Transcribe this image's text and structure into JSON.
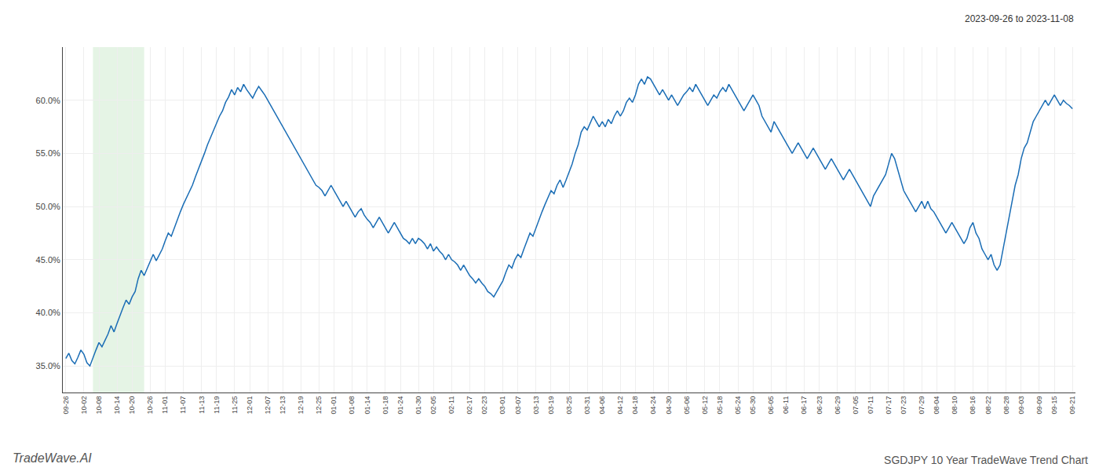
{
  "chart_data": {
    "type": "line",
    "title": "SGDJPY 10 Year TradeWave Trend Chart",
    "subtitle": "2023-09-26 to 2023-11-08",
    "annotations": [
      {
        "text": "TradeWave.AI"
      }
    ],
    "color": "#1a6db5",
    "grid": true,
    "shade": {
      "from": 9,
      "to": 26,
      "color": "#d4ecd4"
    },
    "xlim": [
      -1,
      335
    ],
    "ylim": [
      32.5,
      65.0
    ],
    "yticks": [
      {
        "value": 35.0,
        "label": "35.0%"
      },
      {
        "value": 40.0,
        "label": "40.0%"
      },
      {
        "value": 45.0,
        "label": "45.0%"
      },
      {
        "value": 50.0,
        "label": "50.0%"
      },
      {
        "value": 55.0,
        "label": "55.0%"
      },
      {
        "value": 60.0,
        "label": "60.0%"
      }
    ],
    "categories": [
      "09-26",
      null,
      null,
      null,
      null,
      null,
      "10-02",
      null,
      null,
      null,
      null,
      "10-08",
      null,
      null,
      null,
      null,
      null,
      "10-14",
      null,
      null,
      null,
      null,
      "10-20",
      null,
      null,
      null,
      null,
      null,
      "10-26",
      null,
      null,
      null,
      null,
      "11-01",
      null,
      null,
      null,
      null,
      null,
      "11-07",
      null,
      null,
      null,
      null,
      null,
      "11-13",
      null,
      null,
      null,
      null,
      "11-19",
      null,
      null,
      null,
      null,
      null,
      "11-25",
      null,
      null,
      null,
      null,
      "12-01",
      null,
      null,
      null,
      null,
      null,
      "12-07",
      null,
      null,
      null,
      null,
      "12-13",
      null,
      null,
      null,
      null,
      null,
      "12-19",
      null,
      null,
      null,
      null,
      null,
      "12-25",
      null,
      null,
      null,
      null,
      "01-01",
      null,
      null,
      null,
      null,
      null,
      "01-08",
      null,
      null,
      null,
      null,
      "01-14",
      null,
      null,
      null,
      null,
      null,
      "01-18",
      null,
      null,
      null,
      null,
      "01-24",
      null,
      null,
      null,
      null,
      null,
      "01-30",
      null,
      null,
      null,
      null,
      "02-05",
      null,
      null,
      null,
      null,
      null,
      "02-11",
      null,
      null,
      null,
      null,
      null,
      "02-17",
      null,
      null,
      null,
      null,
      "02-23",
      null,
      null,
      null,
      null,
      null,
      "03-01",
      null,
      null,
      null,
      null,
      "03-07",
      null,
      null,
      null,
      null,
      null,
      "03-13",
      null,
      null,
      null,
      null,
      "03-19",
      null,
      null,
      null,
      null,
      null,
      "03-25",
      null,
      null,
      null,
      null,
      null,
      "03-31",
      null,
      null,
      null,
      null,
      "04-06",
      null,
      null,
      null,
      null,
      null,
      "04-12",
      null,
      null,
      null,
      null,
      "04-18",
      null,
      null,
      null,
      null,
      null,
      "04-24",
      null,
      null,
      null,
      null,
      "04-30",
      null,
      null,
      null,
      null,
      null,
      "05-06",
      null,
      null,
      null,
      null,
      null,
      "05-12",
      null,
      null,
      null,
      null,
      "05-18",
      null,
      null,
      null,
      null,
      null,
      "05-24",
      null,
      null,
      null,
      null,
      "05-30",
      null,
      null,
      null,
      null,
      null,
      "06-05",
      null,
      null,
      null,
      null,
      "06-11",
      null,
      null,
      null,
      null,
      null,
      "06-17",
      null,
      null,
      null,
      null,
      "06-23",
      null,
      null,
      null,
      null,
      null,
      "06-29",
      null,
      null,
      null,
      null,
      null,
      "07-05",
      null,
      null,
      null,
      null,
      "07-11",
      null,
      null,
      null,
      null,
      null,
      "07-17",
      null,
      null,
      null,
      null,
      "07-23",
      null,
      null,
      null,
      null,
      null,
      "07-29",
      null,
      null,
      null,
      null,
      "08-04",
      null,
      null,
      null,
      null,
      null,
      "08-10",
      null,
      null,
      null,
      null,
      null,
      "08-16",
      null,
      null,
      null,
      null,
      "08-22",
      null,
      null,
      null,
      null,
      null,
      "08-28",
      null,
      null,
      null,
      null,
      "09-03",
      null,
      null,
      null,
      null,
      null,
      "09-09",
      null,
      null,
      null,
      null,
      "09-15",
      null,
      null,
      null,
      null,
      null,
      "09-21"
    ],
    "values": [
      35.7,
      36.2,
      35.5,
      35.2,
      35.8,
      36.5,
      36.1,
      35.3,
      35.0,
      35.8,
      36.5,
      37.2,
      36.8,
      37.4,
      38.0,
      38.8,
      38.2,
      39.0,
      39.8,
      40.5,
      41.2,
      40.8,
      41.5,
      42.0,
      43.2,
      44.0,
      43.5,
      44.2,
      44.8,
      45.5,
      44.9,
      45.5,
      46.0,
      46.8,
      47.5,
      47.2,
      48.0,
      48.8,
      49.5,
      50.2,
      50.8,
      51.5,
      52.0,
      52.8,
      53.5,
      54.2,
      55.0,
      55.8,
      56.5,
      57.2,
      57.8,
      58.5,
      59.0,
      59.8,
      60.3,
      61.0,
      60.5,
      61.2,
      60.8,
      61.5,
      61.0,
      60.6,
      60.2,
      60.8,
      61.3,
      60.9,
      60.5,
      60.0,
      59.5,
      59.0,
      58.5,
      58.0,
      57.5,
      57.0,
      56.5,
      56.0,
      55.5,
      55.0,
      54.5,
      54.0,
      53.5,
      53.0,
      52.5,
      52.0,
      51.8,
      51.5,
      51.0,
      51.5,
      52.0,
      51.5,
      51.0,
      50.5,
      50.0,
      50.5,
      50.0,
      49.5,
      49.0,
      49.5,
      49.8,
      49.2,
      48.8,
      48.5,
      48.0,
      48.5,
      49.0,
      48.5,
      48.0,
      47.5,
      48.0,
      48.5,
      48.0,
      47.5,
      47.0,
      46.8,
      46.5,
      47.0,
      46.5,
      47.0,
      46.8,
      46.5,
      46.0,
      46.5,
      45.8,
      46.2,
      45.8,
      45.5,
      45.0,
      45.5,
      45.0,
      44.8,
      44.5,
      44.0,
      44.5,
      44.0,
      43.5,
      43.2,
      42.8,
      43.2,
      42.8,
      42.5,
      42.0,
      41.8,
      41.5,
      42.0,
      42.5,
      43.0,
      43.8,
      44.5,
      44.2,
      45.0,
      45.5,
      45.2,
      46.0,
      46.8,
      47.5,
      47.2,
      48.0,
      48.8,
      49.5,
      50.2,
      50.8,
      51.5,
      51.2,
      52.0,
      52.5,
      51.8,
      52.5,
      53.2,
      54.0,
      55.0,
      55.8,
      57.0,
      57.5,
      57.2,
      57.8,
      58.5,
      58.0,
      57.5,
      58.0,
      57.5,
      58.2,
      57.8,
      58.5,
      59.0,
      58.5,
      59.0,
      59.8,
      60.2,
      59.8,
      60.5,
      61.5,
      62.0,
      61.5,
      62.2,
      62.0,
      61.5,
      61.0,
      60.5,
      61.0,
      60.5,
      60.0,
      60.5,
      60.0,
      59.5,
      60.0,
      60.5,
      60.8,
      61.2,
      60.8,
      61.5,
      61.0,
      60.5,
      60.0,
      59.5,
      60.0,
      60.5,
      60.2,
      60.8,
      61.2,
      60.8,
      61.5,
      61.0,
      60.5,
      60.0,
      59.5,
      59.0,
      59.5,
      60.0,
      60.5,
      60.0,
      59.5,
      58.5,
      58.0,
      57.5,
      57.0,
      58.0,
      57.5,
      57.0,
      56.5,
      56.0,
      55.5,
      55.0,
      55.5,
      56.0,
      55.5,
      55.0,
      54.5,
      55.0,
      55.5,
      55.0,
      54.5,
      54.0,
      53.5,
      54.0,
      54.5,
      54.0,
      53.5,
      53.0,
      52.5,
      53.0,
      53.5,
      53.0,
      52.5,
      52.0,
      51.5,
      51.0,
      50.5,
      50.0,
      51.0,
      51.5,
      52.0,
      52.5,
      53.0,
      54.0,
      55.0,
      54.5,
      53.5,
      52.5,
      51.5,
      51.0,
      50.5,
      50.0,
      49.5,
      50.0,
      50.5,
      49.8,
      50.5,
      49.8,
      49.5,
      49.0,
      48.5,
      48.0,
      47.5,
      48.0,
      48.5,
      48.0,
      47.5,
      47.0,
      46.5,
      47.0,
      48.0,
      48.5,
      47.5,
      47.0,
      46.0,
      45.5,
      45.0,
      45.5,
      44.5,
      44.0,
      44.5,
      46.0,
      47.5,
      49.0,
      50.5,
      52.0,
      53.0,
      54.5,
      55.5,
      56.0,
      57.0,
      58.0,
      58.5,
      59.0,
      59.5,
      60.0,
      59.5,
      60.0,
      60.5,
      60.0,
      59.5,
      60.0,
      59.7,
      59.5,
      59.2
    ]
  }
}
